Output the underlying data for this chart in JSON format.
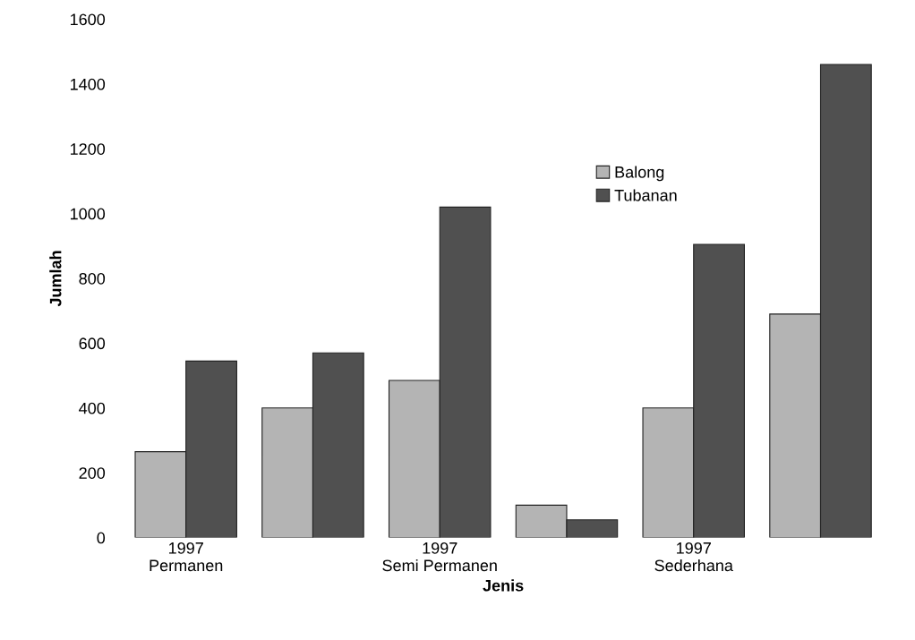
{
  "chart_data": {
    "type": "bar",
    "xlabel": "Jenis",
    "ylabel": "Jumlah",
    "categories": [
      "1997\nPermanen",
      null,
      "1997\nSemi Permanen",
      null,
      "1997\nSederhana",
      null
    ],
    "series": [
      {
        "name": "Balong",
        "color": "#b4b4b4",
        "values": [
          265,
          400,
          485,
          100,
          400,
          690
        ]
      },
      {
        "name": "Tubanan",
        "color": "#505050",
        "values": [
          545,
          570,
          1020,
          55,
          905,
          1460
        ]
      }
    ],
    "ylim": [
      0,
      1600
    ],
    "yticks": [
      0,
      200,
      400,
      600,
      800,
      1000,
      1200,
      1400,
      1600
    ],
    "grid": false,
    "legend": "center"
  }
}
